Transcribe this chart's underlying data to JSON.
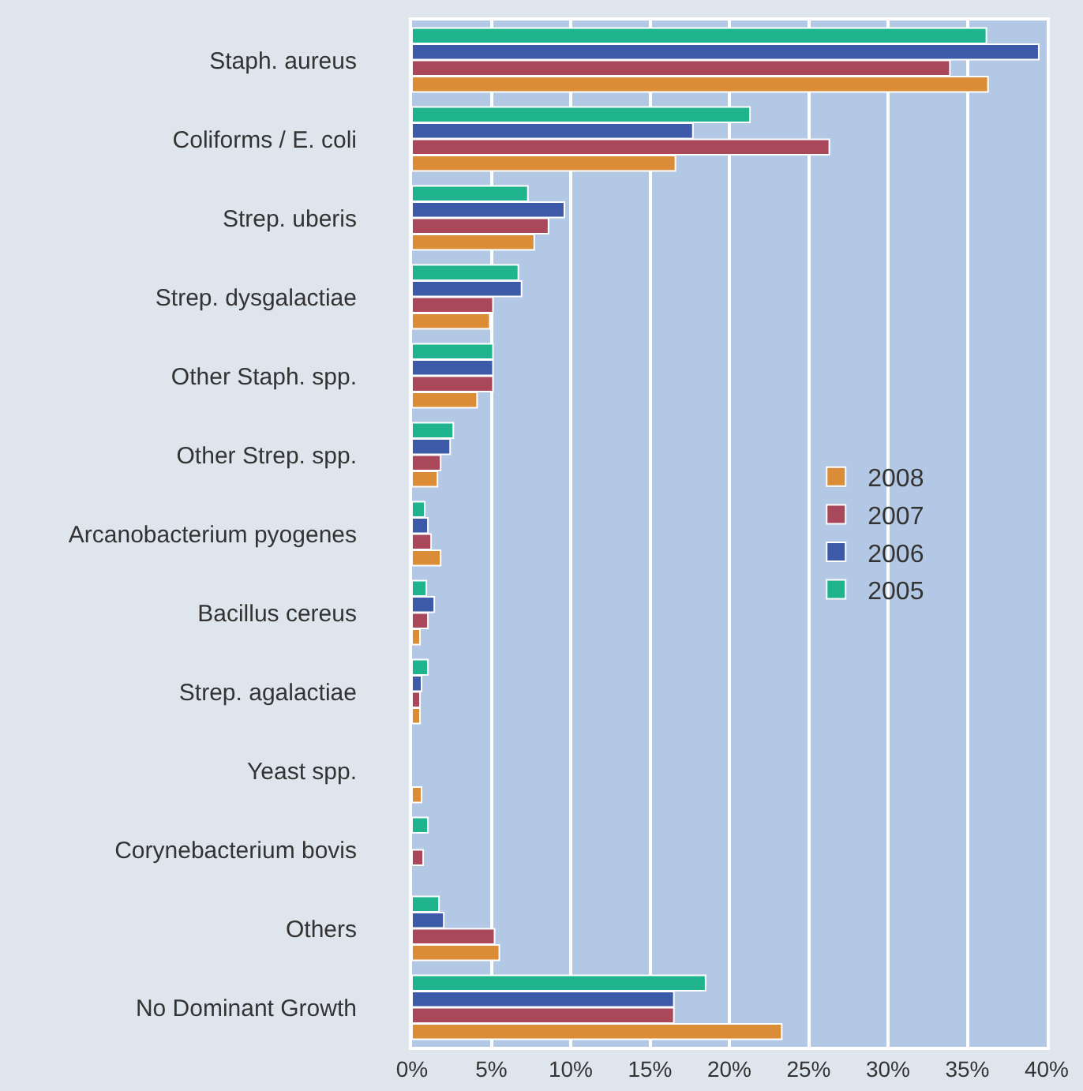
{
  "chart_data": {
    "type": "bar",
    "orientation": "horizontal",
    "categories": [
      "Staph. aureus",
      "Coliforms / E. coli",
      "Strep. uberis",
      "Strep. dysgalactiae",
      "Other Staph. spp.",
      "Other Strep. spp.",
      "Arcanobacterium pyogenes",
      "Bacillus cereus",
      "Strep. agalactiae",
      "Yeast spp.",
      "Corynebacterium bovis",
      "Others",
      "No Dominant Growth"
    ],
    "series": [
      {
        "name": "2005",
        "color": "#1fb48e",
        "values": [
          36.2,
          21.3,
          7.3,
          6.7,
          5.1,
          2.6,
          0.8,
          0.9,
          1.0,
          null,
          1.0,
          1.7,
          18.5
        ]
      },
      {
        "name": "2006",
        "color": "#3d5aa8",
        "values": [
          39.5,
          17.7,
          9.6,
          6.9,
          5.1,
          2.4,
          1.0,
          1.4,
          0.6,
          null,
          null,
          2.0,
          16.5
        ]
      },
      {
        "name": "2007",
        "color": "#a8485a",
        "values": [
          33.9,
          26.3,
          8.6,
          5.1,
          5.1,
          1.8,
          1.2,
          1.0,
          0.5,
          null,
          0.7,
          5.2,
          16.5
        ]
      },
      {
        "name": "2008",
        "color": "#da8c36",
        "values": [
          36.3,
          16.6,
          7.7,
          4.9,
          4.1,
          1.6,
          1.8,
          0.5,
          0.5,
          0.6,
          null,
          5.5,
          23.3
        ]
      }
    ],
    "xlim": [
      0,
      40
    ],
    "xticks": [
      {
        "value": 0,
        "label": "0%"
      },
      {
        "value": 5,
        "label": "5%"
      },
      {
        "value": 10,
        "label": "10%"
      },
      {
        "value": 15,
        "label": "15%"
      },
      {
        "value": 20,
        "label": "20%"
      },
      {
        "value": 25,
        "label": "25%"
      },
      {
        "value": 30,
        "label": "30%"
      },
      {
        "value": 35,
        "label": "35%"
      },
      {
        "value": 40,
        "label": "40%"
      }
    ],
    "grid": "x",
    "legend": "right"
  }
}
